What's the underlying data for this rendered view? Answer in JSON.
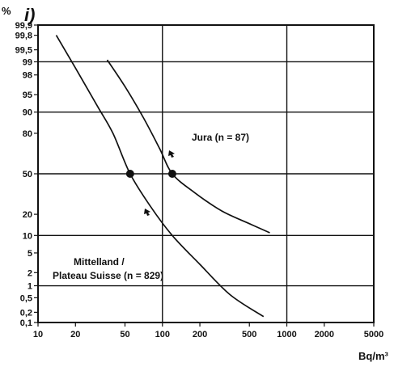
{
  "chart_data": {
    "type": "line",
    "title": "",
    "panel_label": "i)",
    "xlabel": "Bq/m³",
    "ylabel": "%",
    "x_scale": "log",
    "y_scale": "probability",
    "xlim": [
      10,
      5000
    ],
    "ylim": [
      0.1,
      99.9
    ],
    "x_ticks": [
      "10",
      "20",
      "50",
      "100",
      "200",
      "500",
      "1000",
      "2000",
      "5000"
    ],
    "y_ticks": [
      "99,9",
      "99,8",
      "99,5",
      "99",
      "98",
      "95",
      "90",
      "80",
      "50",
      "20",
      "10",
      "5",
      "2",
      "1",
      "0,5",
      "0,2",
      "0,1"
    ],
    "series": [
      {
        "name": "Mittelland / Plateau Suisse (n = 829)",
        "x": [
          14,
          20,
          30,
          40,
          55,
          80,
          120,
          200,
          350,
          650
        ],
        "y": [
          99.8,
          98.6,
          92,
          80,
          50,
          25,
          10,
          3,
          0.6,
          0.15
        ],
        "median_marker": {
          "x": 55,
          "y": 50
        }
      },
      {
        "name": "Jura (n = 87)",
        "x": [
          36,
          50,
          70,
          95,
          120,
          180,
          300,
          500,
          730
        ],
        "y": [
          99.1,
          96.5,
          88,
          70,
          50,
          35,
          22,
          15,
          11
        ]
      }
    ],
    "series_labels": [
      "Jura (n = 87)",
      "Mittelland /",
      "Plateau Suisse (n = 829)"
    ],
    "grid": true
  }
}
